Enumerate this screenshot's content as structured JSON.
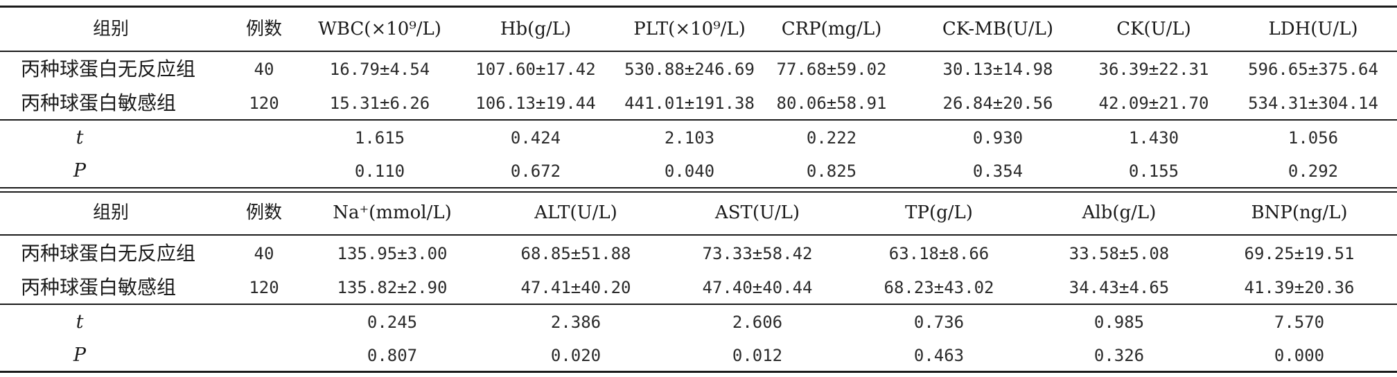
{
  "table1": {
    "header": [
      "组别",
      "例数",
      "WBC(×10⁹/L)",
      "Hb(g/L)",
      "PLT(×10⁹/L)",
      "CRP(mg/L)",
      "CK-MB(U/L)",
      "CK(U/L)",
      "LDH(U/L)"
    ],
    "rows": [
      [
        "丙种球蛋白无反应组",
        "40",
        "16.79±4.54",
        "107.60±17.42",
        "530.88±246.69",
        "77.68±59.02",
        "30.13±14.98",
        "36.39±22.31",
        "596.65±375.64"
      ],
      [
        "丙种球蛋白敏感组",
        "120",
        "15.31±6.26",
        "106.13±19.44",
        "441.01±191.38",
        "80.06±58.91",
        "26.84±20.56",
        "42.09±21.70",
        "534.31±304.14"
      ]
    ],
    "stats": [
      [
        "t",
        "",
        "1.615",
        "0.424",
        "2.103",
        "0.222",
        "0.930",
        "1.430",
        "1.056"
      ],
      [
        "P",
        "",
        "0.110",
        "0.672",
        "0.040",
        "0.825",
        "0.354",
        "0.155",
        "0.292"
      ]
    ]
  },
  "table2": {
    "header": [
      "组别",
      "例数",
      "Na⁺(mmol/L)",
      "ALT(U/L)",
      "AST(U/L)",
      "TP(g/L)",
      "Alb(g/L)",
      "BNP(ng/L)"
    ],
    "rows": [
      [
        "丙种球蛋白无反应组",
        "40",
        "135.95±3.00",
        "68.85±51.88",
        "73.33±58.42",
        "63.18±8.66",
        "33.58±5.08",
        "69.25±19.51"
      ],
      [
        "丙种球蛋白敏感组",
        "120",
        "135.82±2.90",
        "47.41±40.20",
        "47.40±40.44",
        "68.23±43.02",
        "34.43±4.65",
        "41.39±20.36"
      ]
    ],
    "stats": [
      [
        "t",
        "",
        "0.245",
        "2.386",
        "2.606",
        "0.736",
        "0.985",
        "7.570"
      ],
      [
        "P",
        "",
        "0.807",
        "0.020",
        "0.012",
        "0.463",
        "0.326",
        "0.000"
      ]
    ]
  }
}
